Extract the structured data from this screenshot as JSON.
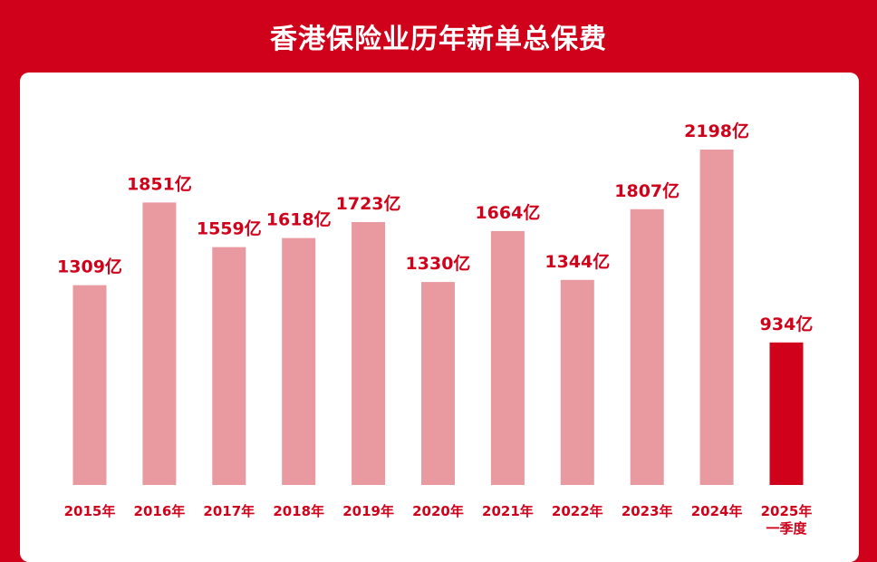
{
  "header": {
    "title": "香港保险业历年新单总保费"
  },
  "colors": {
    "background": "#D0021B",
    "bar": "#E89AA0",
    "bar_highlight": "#D0021B",
    "label": "#D0021B"
  },
  "chart_data": {
    "type": "bar",
    "title": "香港保险业历年新单总保费",
    "categories": [
      "2015年",
      "2016年",
      "2017年",
      "2018年",
      "2019年",
      "2020年",
      "2021年",
      "2022年",
      "2023年",
      "2024年",
      "2025年一季度"
    ],
    "category_lines": [
      [
        "2015年"
      ],
      [
        "2016年"
      ],
      [
        "2017年"
      ],
      [
        "2018年"
      ],
      [
        "2019年"
      ],
      [
        "2020年"
      ],
      [
        "2021年"
      ],
      [
        "2022年"
      ],
      [
        "2023年"
      ],
      [
        "2024年"
      ],
      [
        "2025年",
        "一季度"
      ]
    ],
    "values": [
      1309,
      1851,
      1559,
      1618,
      1723,
      1330,
      1664,
      1344,
      1807,
      2198,
      934
    ],
    "value_labels": [
      "1309亿",
      "1851亿",
      "1559亿",
      "1618亿",
      "1723亿",
      "1330亿",
      "1664亿",
      "1344亿",
      "1807亿",
      "2198亿",
      "934亿"
    ],
    "unit": "亿",
    "highlight_index": 10,
    "xlabel": "",
    "ylabel": "",
    "ylim": [
      0,
      2198
    ],
    "grid": false,
    "legend": "none"
  }
}
